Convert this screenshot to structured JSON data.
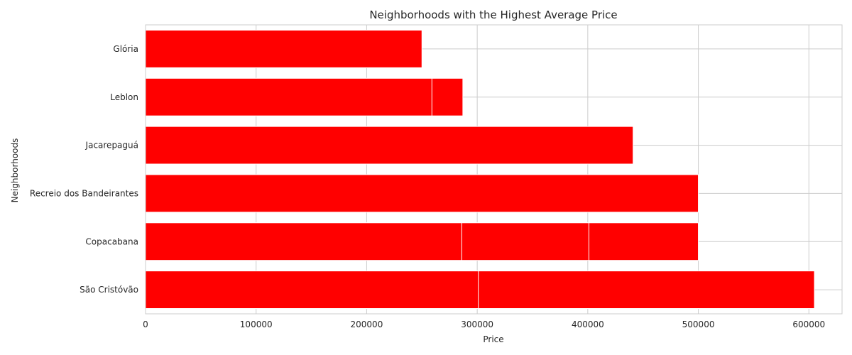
{
  "chart_data": {
    "type": "bar",
    "orientation": "horizontal",
    "title": "Neighborhoods with the Highest Average Price",
    "xlabel": "Price",
    "ylabel": "Neighborhoods",
    "xlim": [
      0,
      630000
    ],
    "xticks": [
      0,
      100000,
      200000,
      300000,
      400000,
      500000,
      600000
    ],
    "xtick_labels": [
      "0",
      "100000",
      "200000",
      "300000",
      "400000",
      "500000",
      "600000"
    ],
    "categories": [
      "São Cristóvão",
      "Copacabana",
      "Recreio dos Bandeirantes",
      "Jacarepaguá",
      "Leblon",
      "Glória"
    ],
    "bars": [
      {
        "category": "São Cristóvão",
        "value": 605000
      },
      {
        "category": "São Cristóvão",
        "value": 301000
      },
      {
        "category": "Copacabana",
        "value": 500000
      },
      {
        "category": "Copacabana",
        "value": 401000
      },
      {
        "category": "Copacabana",
        "value": 286000
      },
      {
        "category": "Recreio dos Bandeirantes",
        "value": 500000
      },
      {
        "category": "Jacarepaguá",
        "value": 441000
      },
      {
        "category": "Leblon",
        "value": 287000
      },
      {
        "category": "Leblon",
        "value": 259000
      },
      {
        "category": "Glória",
        "value": 250000
      }
    ],
    "bar_color": "#ff0000",
    "grid": true,
    "legend": "none"
  }
}
